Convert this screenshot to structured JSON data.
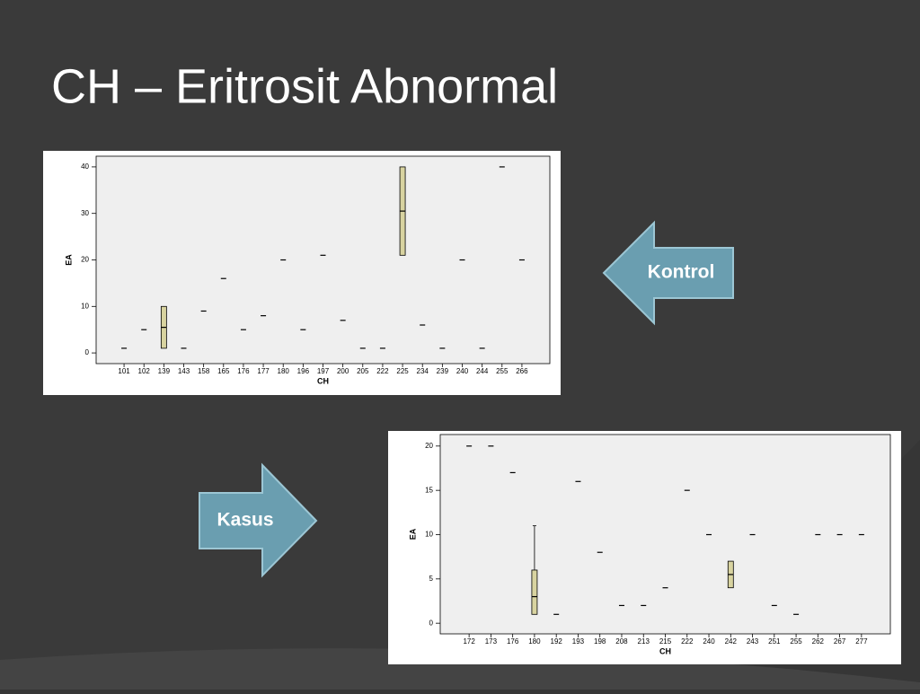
{
  "title": "CH – Eritrosit Abnormal",
  "arrows": [
    "Kontrol",
    "Kasus"
  ],
  "chart_data": [
    {
      "type": "boxplot",
      "x_label": "CH",
      "y_label": "EA",
      "categories": [
        "101",
        "102",
        "139",
        "143",
        "158",
        "165",
        "176",
        "177",
        "180",
        "196",
        "197",
        "200",
        "205",
        "222",
        "225",
        "234",
        "239",
        "240",
        "244",
        "255",
        "266"
      ],
      "median": [
        1,
        5,
        5.5,
        1,
        9,
        16,
        5,
        8,
        20,
        5,
        21,
        7,
        1,
        1,
        30.5,
        6,
        1,
        20,
        1,
        40,
        20
      ],
      "q1": [
        null,
        null,
        1,
        null,
        null,
        null,
        null,
        null,
        null,
        null,
        null,
        null,
        null,
        null,
        21,
        null,
        null,
        null,
        null,
        null,
        null
      ],
      "q3": [
        null,
        null,
        10,
        null,
        null,
        null,
        null,
        null,
        null,
        null,
        null,
        null,
        null,
        null,
        40,
        null,
        null,
        null,
        null,
        null,
        null
      ],
      "min": [
        null,
        null,
        null,
        null,
        null,
        null,
        null,
        null,
        null,
        null,
        null,
        null,
        null,
        null,
        null,
        null,
        null,
        null,
        null,
        null,
        null
      ],
      "max": [
        null,
        null,
        null,
        null,
        null,
        null,
        null,
        null,
        null,
        null,
        null,
        null,
        null,
        null,
        null,
        null,
        null,
        null,
        null,
        null,
        null
      ],
      "color": "#d8d3a0",
      "ylim": [
        -2.3,
        42.3
      ],
      "yticks": [
        0,
        10,
        20,
        30,
        40
      ]
    },
    {
      "type": "boxplot",
      "x_label": "CH",
      "y_label": "EA",
      "categories": [
        "172",
        "173",
        "176",
        "180",
        "192",
        "193",
        "198",
        "208",
        "213",
        "215",
        "222",
        "240",
        "242",
        "243",
        "251",
        "255",
        "262",
        "267",
        "277"
      ],
      "median": [
        20,
        20,
        17,
        3,
        1,
        16,
        8,
        2,
        2,
        4,
        15,
        10,
        5.5,
        10,
        2,
        1,
        10,
        10,
        10
      ],
      "q1": [
        null,
        null,
        null,
        1,
        null,
        null,
        null,
        null,
        null,
        null,
        null,
        null,
        4,
        null,
        null,
        null,
        null,
        null,
        null
      ],
      "q3": [
        null,
        null,
        null,
        6,
        null,
        null,
        null,
        null,
        null,
        null,
        null,
        null,
        7,
        null,
        null,
        null,
        null,
        null,
        null
      ],
      "min": [
        null,
        null,
        null,
        1,
        null,
        null,
        null,
        null,
        null,
        null,
        null,
        null,
        null,
        null,
        null,
        null,
        null,
        null,
        null
      ],
      "max": [
        null,
        null,
        null,
        11,
        null,
        null,
        null,
        null,
        null,
        null,
        null,
        null,
        null,
        null,
        null,
        null,
        null,
        null,
        null
      ],
      "color": "#d8d3a0",
      "ylim": [
        -1.2,
        21.3
      ],
      "yticks": [
        0,
        5,
        10,
        15,
        20
      ]
    }
  ]
}
